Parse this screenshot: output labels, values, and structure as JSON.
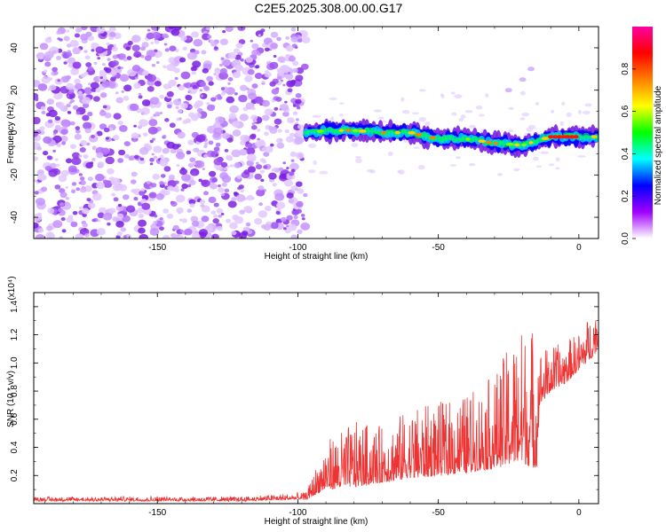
{
  "title": "C2E5.2025.308.00.00.G17",
  "chart_data": [
    {
      "type": "heatmap",
      "title": "C2E5.2025.308.00.00.G17",
      "xlabel": "Height of straight line (km)",
      "ylabel": "Frequency (Hz)",
      "xlim": [
        -194,
        7
      ],
      "ylim": [
        -50,
        50
      ],
      "xticks": [
        "-150",
        "-100",
        "-50",
        "0"
      ],
      "yticks": [
        "-40",
        "-20",
        "0",
        "20",
        "40"
      ],
      "colorbar": {
        "label": "Normalized spectral amplitude",
        "range": [
          0,
          1
        ],
        "ticks": [
          "0.0",
          "0.2",
          "0.4",
          "0.6",
          "0.8"
        ],
        "colors": [
          "#ffffff",
          "#a000ff",
          "#0000ff",
          "#00ffff",
          "#00ff00",
          "#ffff00",
          "#ff8000",
          "#ff0000",
          "#ff00a0"
        ]
      },
      "noise_region": {
        "x_range": [
          -194,
          -97
        ],
        "y_range": [
          -50,
          50
        ]
      },
      "signal_ridge": {
        "x": [
          -97,
          -90,
          -80,
          -70,
          -60,
          -50,
          -40,
          -30,
          -20,
          -15,
          -10,
          0,
          7
        ],
        "y": [
          0,
          1,
          1,
          0,
          0,
          -3,
          -3,
          -5,
          -6,
          -4,
          -2,
          -2,
          -2
        ]
      },
      "faint_track": {
        "x": [
          -25,
          -20,
          -17
        ],
        "y": [
          20,
          25,
          30
        ]
      }
    },
    {
      "type": "line",
      "xlabel": "Height of straight line (km)",
      "ylabel": "SNR (10 * v/v)",
      "y_multiplier": "(x10⁴)",
      "xlim": [
        -194,
        7
      ],
      "ylim": [
        0,
        1.5
      ],
      "xticks": [
        "-150",
        "-100",
        "-50",
        "0"
      ],
      "yticks": [
        "0.2",
        "0.4",
        "0.6",
        "0.8",
        "1.0",
        "1.2",
        "1.4"
      ],
      "color": "#ee3333",
      "envelope": {
        "x": [
          -194,
          -120,
          -97,
          -90,
          -80,
          -70,
          -60,
          -50,
          -40,
          -30,
          -22,
          -15,
          -14,
          -10,
          -5,
          0,
          5,
          7
        ],
        "base": [
          0.02,
          0.02,
          0.03,
          0.1,
          0.12,
          0.15,
          0.18,
          0.2,
          0.22,
          0.25,
          0.3,
          0.25,
          0.7,
          0.8,
          0.85,
          0.95,
          1.05,
          1.1
        ],
        "peak": [
          0.05,
          0.05,
          0.08,
          0.45,
          0.58,
          0.55,
          0.68,
          0.72,
          0.78,
          0.92,
          1.25,
          1.3,
          1.1,
          1.12,
          1.15,
          1.22,
          1.38,
          1.45
        ]
      }
    }
  ]
}
